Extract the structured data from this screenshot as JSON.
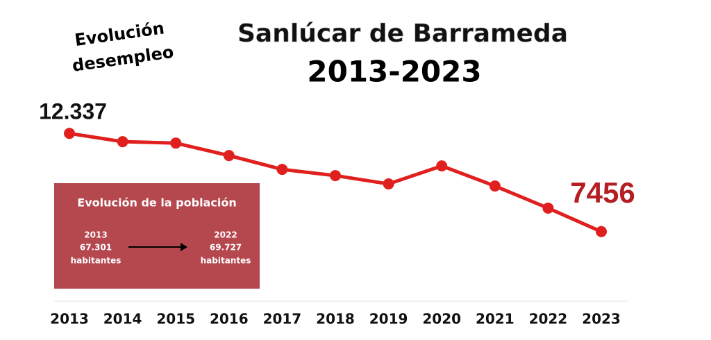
{
  "chart_data": {
    "type": "line",
    "title": "Sanlúcar de Barrameda",
    "subtitle": "2013-2023",
    "tag": [
      "Evolución",
      "desempleo"
    ],
    "categories": [
      "2013",
      "2014",
      "2015",
      "2016",
      "2017",
      "2018",
      "2019",
      "2020",
      "2021",
      "2022",
      "2023"
    ],
    "values": [
      12337,
      11925,
      11855,
      11236,
      10548,
      10239,
      9826,
      10720,
      9723,
      8622,
      7456
    ],
    "value_labels": [
      "12.337",
      null,
      null,
      null,
      null,
      null,
      null,
      null,
      null,
      null,
      "7456"
    ],
    "color": "#e0201e",
    "ylim": [
      4000,
      14000
    ],
    "inset": {
      "title": "Evolución de la población",
      "from": {
        "year": "2013",
        "value": "67.301",
        "unit": "habitantes"
      },
      "to": {
        "year": "2022",
        "value": "69.727",
        "unit": "habitantes"
      }
    }
  }
}
